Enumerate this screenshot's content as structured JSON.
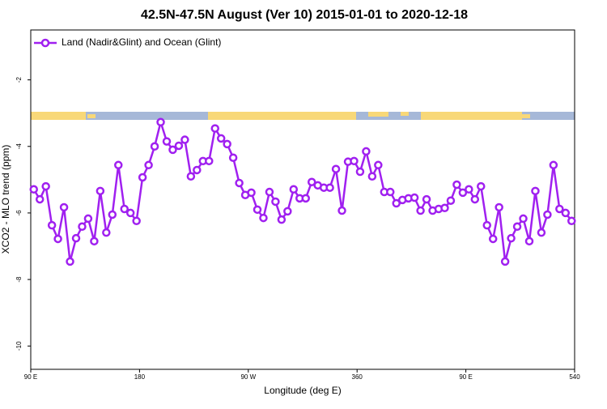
{
  "chart_data": {
    "type": "line",
    "title": "42.5N-47.5N August (Ver 10)   2015-01-01 to 2020-12-18",
    "x_label": "Longitude (deg E)",
    "y_label": "XCO2 - MLO trend (ppm)",
    "x": [
      92.5,
      97.5,
      102.5,
      107.5,
      112.5,
      117.5,
      122.5,
      127.5,
      132.5,
      137.5,
      142.5,
      147.5,
      152.5,
      157.5,
      162.5,
      167.5,
      172.5,
      177.5,
      182.5,
      187.5,
      192.5,
      197.5,
      202.5,
      207.5,
      212.5,
      217.5,
      222.5,
      227.5,
      232.5,
      237.5,
      242.5,
      247.5,
      252.5,
      257.5,
      262.5,
      267.5,
      272.5,
      277.5,
      282.5,
      287.5,
      292.5,
      297.5,
      302.5,
      307.5,
      312.5,
      317.5,
      322.5,
      327.5,
      332.5,
      337.5,
      342.5,
      347.5,
      352.5,
      357.5,
      362.5,
      367.5,
      372.5,
      377.5,
      382.5,
      387.5,
      392.5,
      397.5,
      402.5,
      407.5,
      412.5,
      417.5,
      422.5,
      427.5,
      432.5,
      437.5,
      442.5,
      447.5,
      452.5,
      457.5,
      462.5,
      467.5,
      472.5,
      477.5,
      482.5,
      487.5,
      492.5,
      497.5,
      502.5,
      507.5,
      512.5,
      517.5,
      522.5,
      527.5,
      532.5,
      537.5
    ],
    "series": [
      {
        "name": "Land (Nadir&Glint) and Ocean (Glint)",
        "color": "#a020f0",
        "values": [
          -5.29,
          -5.59,
          -5.2,
          -6.37,
          -6.78,
          -5.83,
          -7.46,
          -6.76,
          -6.41,
          -6.17,
          -6.85,
          -5.34,
          -6.59,
          -6.05,
          -4.56,
          -5.88,
          -6.0,
          -6.24,
          -4.93,
          -4.56,
          -4.0,
          -3.27,
          -3.85,
          -4.1,
          -3.98,
          -3.8,
          -4.9,
          -4.71,
          -4.44,
          -4.44,
          -3.46,
          -3.76,
          -3.93,
          -4.34,
          -5.1,
          -5.46,
          -5.39,
          -5.9,
          -6.15,
          -5.37,
          -5.66,
          -6.2,
          -5.95,
          -5.29,
          -5.56,
          -5.56,
          -5.07,
          -5.17,
          -5.24,
          -5.24,
          -4.68,
          -5.93,
          -4.46,
          -4.44,
          -4.76,
          -4.15,
          -4.9,
          -4.56,
          -5.37,
          -5.37,
          -5.71,
          -5.61,
          -5.56,
          -5.54,
          -5.93,
          -5.59,
          -5.93,
          -5.88,
          -5.85,
          -5.63,
          -5.15,
          -5.39,
          -5.29,
          -5.59,
          -5.2,
          -6.37,
          -6.78,
          -5.83,
          -7.46,
          -6.76,
          -6.41,
          -6.17,
          -6.85,
          -5.34,
          -6.59,
          -6.05,
          -4.56,
          -5.88,
          -6.0,
          -6.24
        ]
      }
    ],
    "xlim": [
      90,
      540
    ],
    "xticks": [
      {
        "value": 90,
        "label": "90 E"
      },
      180,
      {
        "value": 270,
        "label": "90 W"
      },
      360,
      {
        "value": 450,
        "label": "90 E"
      },
      540
    ],
    "ylim": [
      -10.7,
      -0.5
    ],
    "yticks": [
      -2,
      -4,
      -6,
      -8,
      -10
    ],
    "legend": "top-left"
  }
}
